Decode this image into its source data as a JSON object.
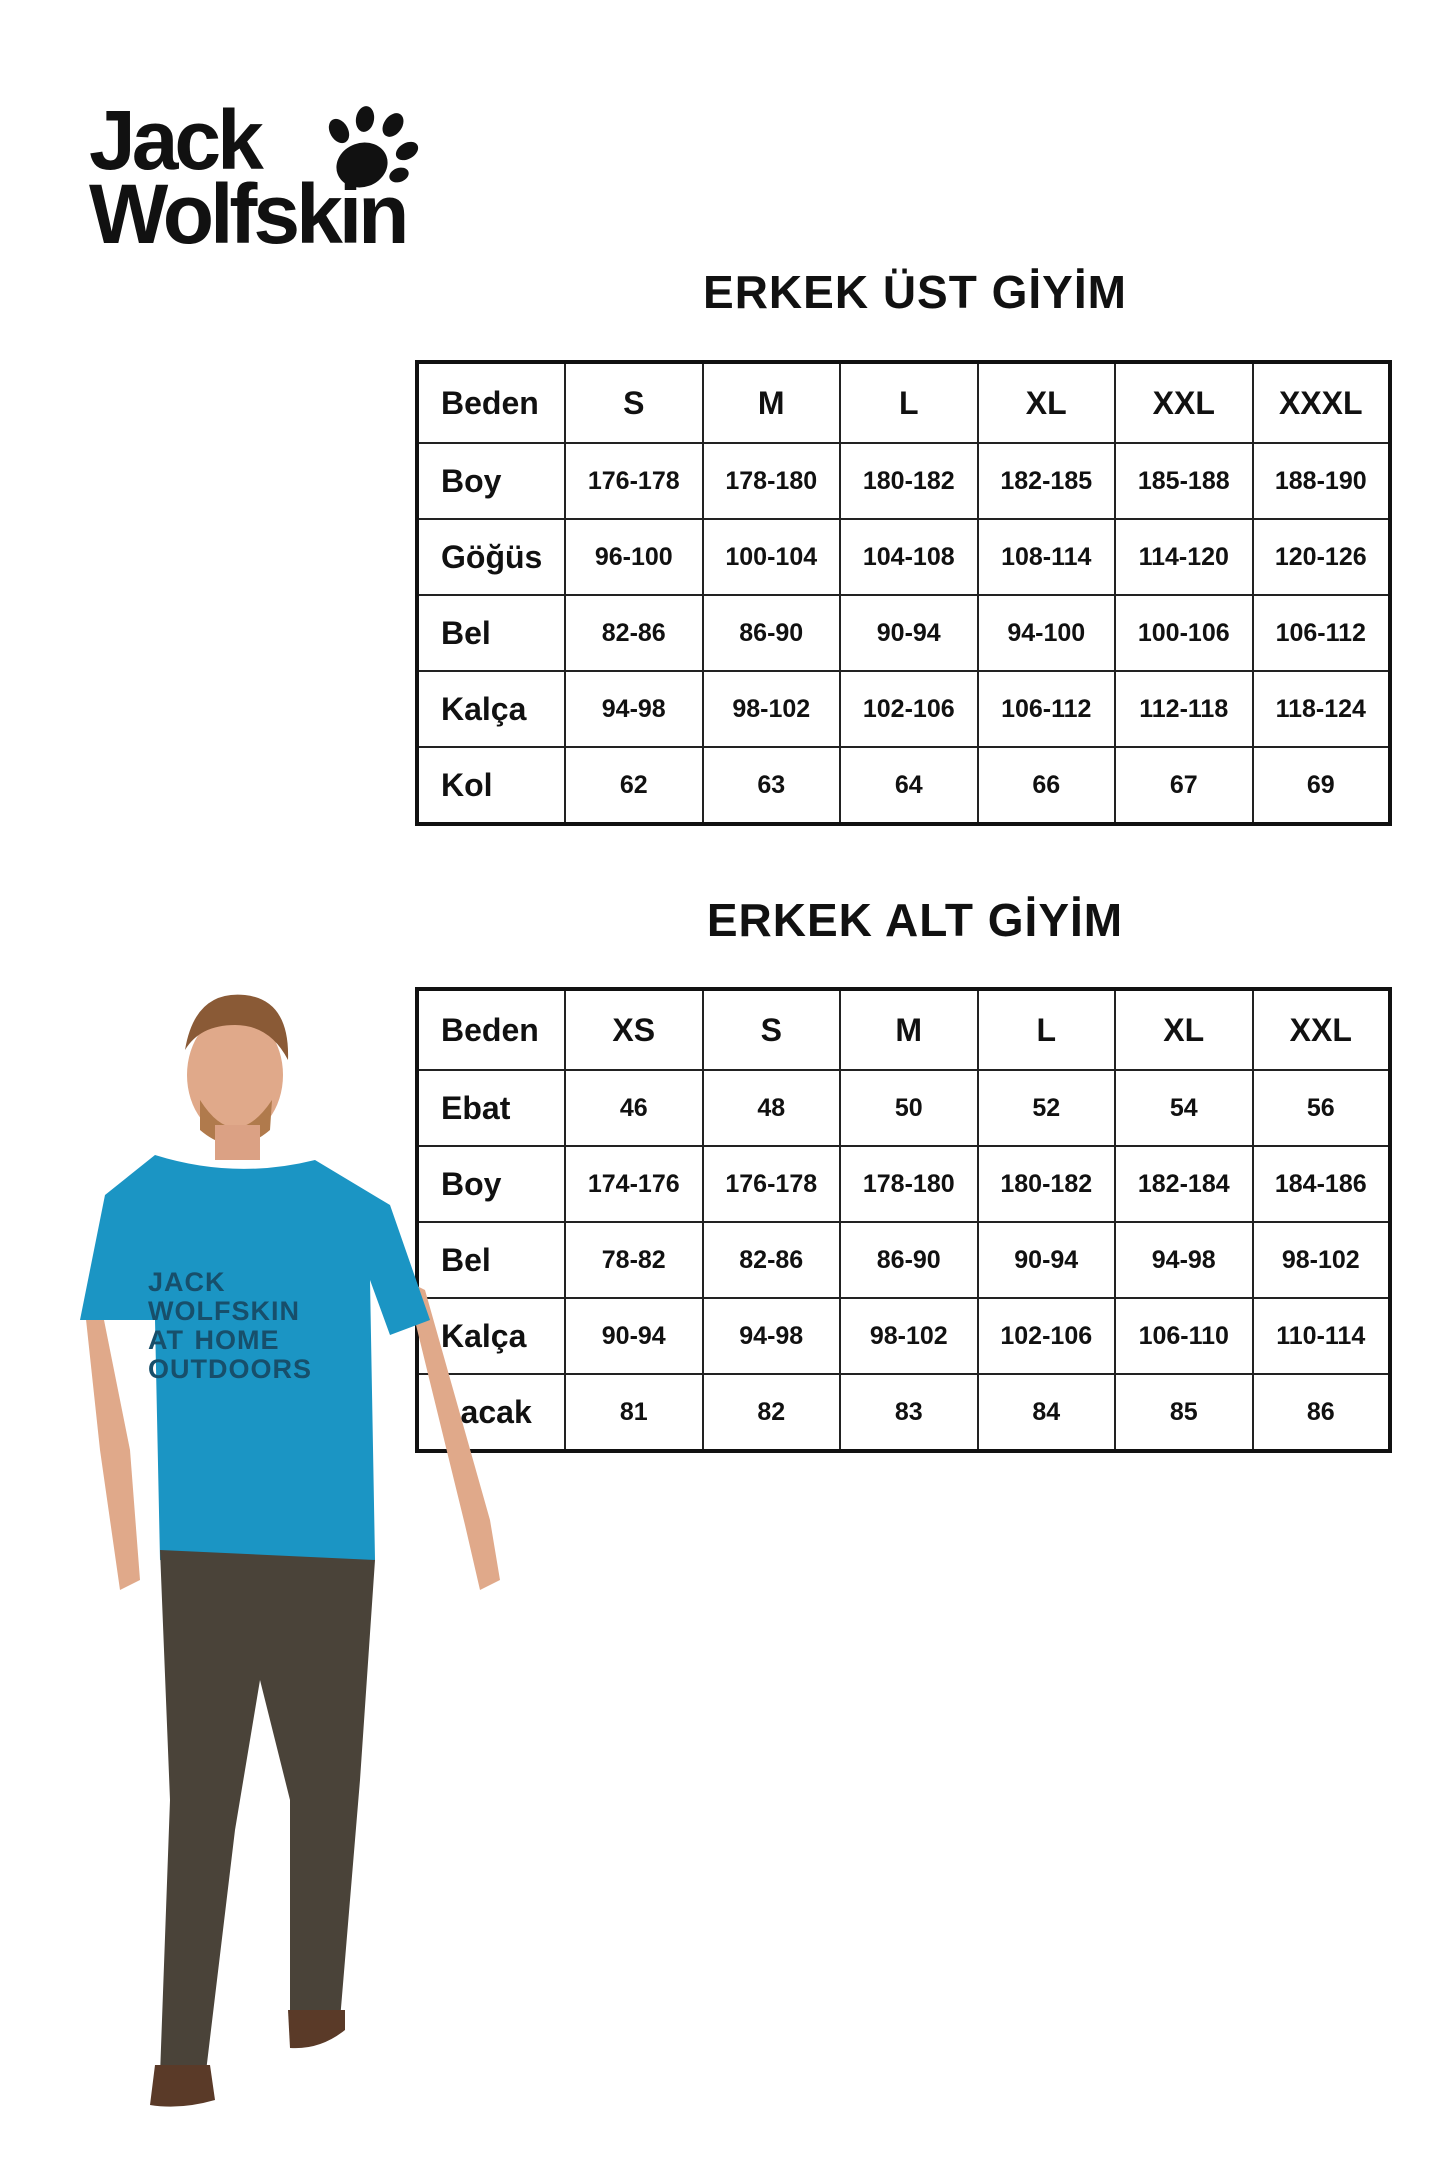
{
  "logo": {
    "line1": "Jack",
    "line2": "Wolfskin"
  },
  "top_section": {
    "title": "ERKEK ÜST GİYİM",
    "headers": [
      "Beden",
      "S",
      "M",
      "L",
      "XL",
      "XXL",
      "XXXL"
    ],
    "rows": [
      {
        "label": "Boy",
        "values": [
          "176-178",
          "178-180",
          "180-182",
          "182-185",
          "185-188",
          "188-190"
        ]
      },
      {
        "label": "Göğüs",
        "values": [
          "96-100",
          "100-104",
          "104-108",
          "108-114",
          "114-120",
          "120-126"
        ]
      },
      {
        "label": "Bel",
        "values": [
          "82-86",
          "86-90",
          "90-94",
          "94-100",
          "100-106",
          "106-112"
        ]
      },
      {
        "label": "Kalça",
        "values": [
          "94-98",
          "98-102",
          "102-106",
          "106-112",
          "112-118",
          "118-124"
        ]
      },
      {
        "label": "Kol",
        "values": [
          "62",
          "63",
          "64",
          "66",
          "67",
          "69"
        ]
      }
    ]
  },
  "bottom_section": {
    "title": "ERKEK ALT GİYİM",
    "headers": [
      "Beden",
      "XS",
      "S",
      "M",
      "L",
      "XL",
      "XXL"
    ],
    "rows": [
      {
        "label": "Ebat",
        "values": [
          "46",
          "48",
          "50",
          "52",
          "54",
          "56"
        ]
      },
      {
        "label": "Boy",
        "values": [
          "174-176",
          "176-178",
          "178-180",
          "180-182",
          "182-184",
          "184-186"
        ]
      },
      {
        "label": "Bel",
        "values": [
          "78-82",
          "82-86",
          "86-90",
          "90-94",
          "94-98",
          "98-102"
        ]
      },
      {
        "label": "Kalça",
        "values": [
          "90-94",
          "94-98",
          "98-102",
          "102-106",
          "106-110",
          "110-114"
        ]
      },
      {
        "label": "bacak",
        "values": [
          "81",
          "82",
          "83",
          "84",
          "85",
          "86"
        ]
      }
    ]
  },
  "model_image": {
    "shirt_print": "JACK WOLFSKIN AT HOME OUTDOORS",
    "shirt_color": "#1b95c4",
    "pants_color": "#4a4339"
  }
}
